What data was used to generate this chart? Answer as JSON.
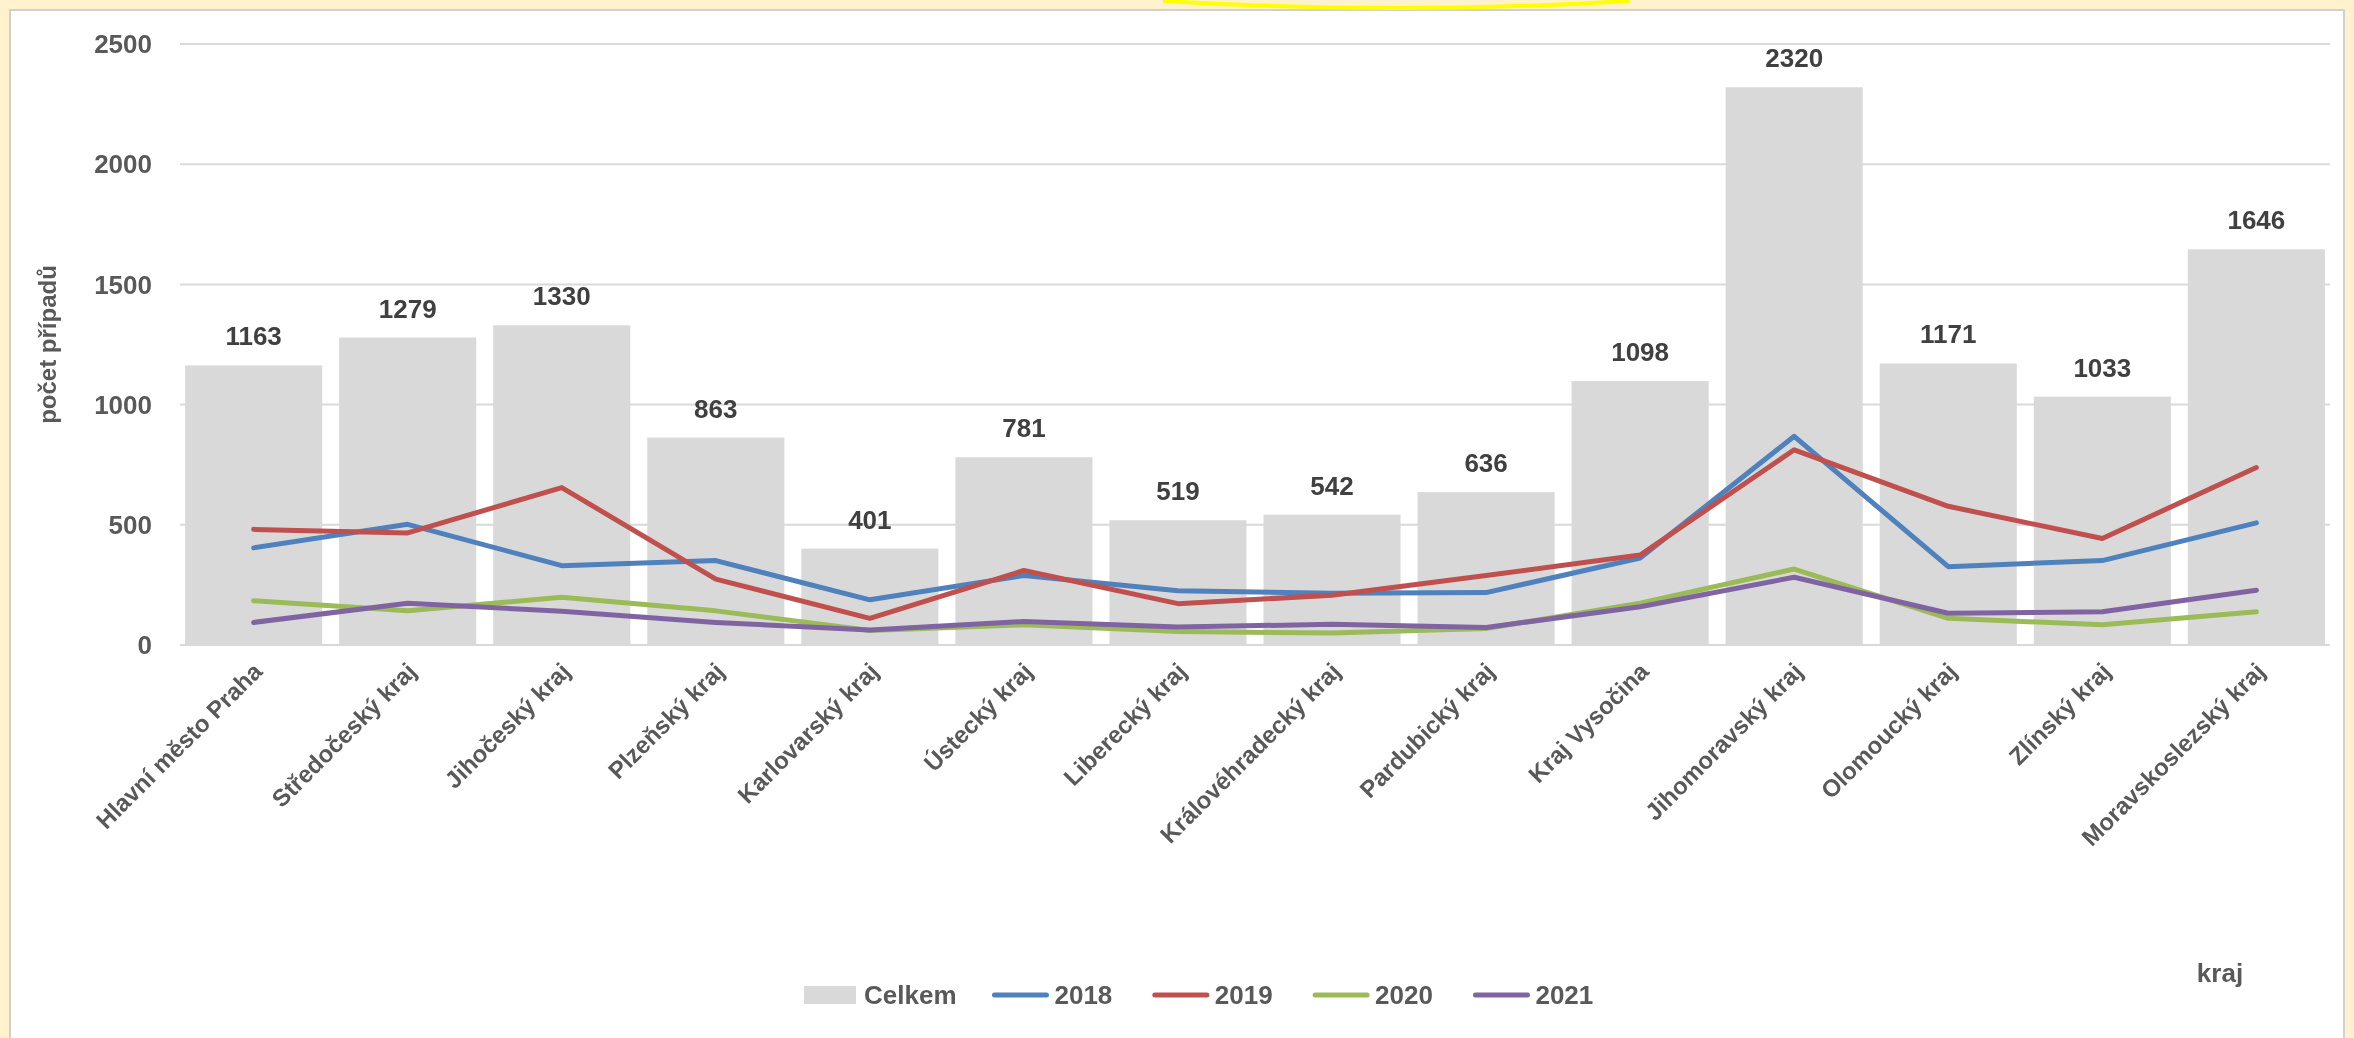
{
  "chart_data": {
    "type": "bar",
    "ylabel": "počet případů",
    "xlabel": "kraj",
    "categories": [
      "Hlavní město Praha",
      "Středočeský kraj",
      "Jihočeský kraj",
      "Plzeňský kraj",
      "Karlovarský kraj",
      "Ústecký kraj",
      "Liberecký kraj",
      "Královéhradecký kraj",
      "Pardubický kraj",
      "Kraj Vysočina",
      "Jihomoravský kraj",
      "Olomoucký kraj",
      "Zlínský kraj",
      "Moravskoslezský kraj"
    ],
    "series": [
      {
        "name": "Celkem",
        "color": "#d9d9d9",
        "values": [
          1163,
          1279,
          1330,
          863,
          401,
          781,
          519,
          542,
          636,
          1098,
          2320,
          1171,
          1033,
          1646
        ],
        "value_labels": [
          "1163",
          "1279",
          "1330",
          "863",
          "401",
          "781",
          "519",
          "542",
          "636",
          "1098",
          "2320",
          "1171",
          "1033",
          "1646"
        ]
      },
      {
        "name": "2018",
        "type": "line",
        "color": "#4f81bd",
        "values": [
          404,
          502,
          330,
          351,
          188,
          289,
          226,
          215,
          218,
          362,
          868,
          326,
          351,
          508
        ]
      },
      {
        "name": "2019",
        "type": "line",
        "color": "#c0504d",
        "values": [
          481,
          466,
          655,
          274,
          111,
          310,
          172,
          207,
          289,
          374,
          812,
          577,
          443,
          738
        ]
      },
      {
        "name": "2020",
        "type": "line",
        "color": "#9bbb59",
        "values": [
          184,
          142,
          199,
          142,
          60,
          84,
          56,
          50,
          69,
          174,
          316,
          111,
          84,
          138
        ]
      },
      {
        "name": "2021",
        "type": "line",
        "color": "#8064a2",
        "values": [
          94,
          174,
          140,
          94,
          62,
          98,
          75,
          86,
          73,
          159,
          282,
          132,
          138,
          228
        ]
      }
    ],
    "ylim": [
      0,
      2500
    ],
    "yticks": [
      0,
      500,
      1000,
      1500,
      2000,
      2500
    ],
    "grid": "y",
    "legend": "bottom"
  }
}
